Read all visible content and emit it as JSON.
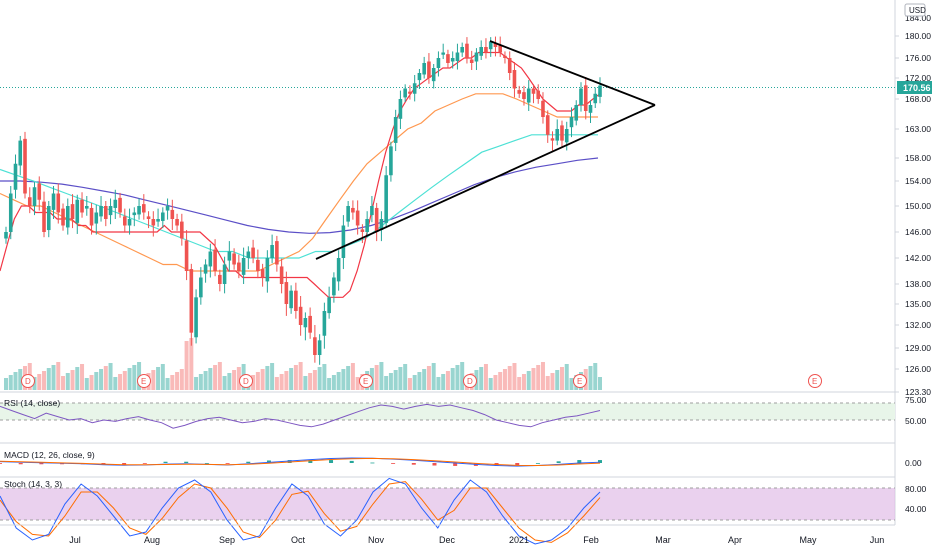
{
  "chart_data": {
    "type": "candlestick",
    "currency": "USD",
    "last_price": "170.56",
    "x_ticks": [
      "Jul",
      "Aug",
      "Sep",
      "Oct",
      "Nov",
      "Dec",
      "2021",
      "Feb",
      "Mar",
      "Apr",
      "May",
      "Jun"
    ],
    "price_ticks": [
      "180.00",
      "176.00",
      "172.00",
      "168.00",
      "163.00",
      "158.00",
      "154.00",
      "150.00",
      "146.00",
      "142.00",
      "138.00",
      "135.00",
      "132.00",
      "129.00",
      "126.00",
      "123.30"
    ],
    "price_top_tick": "184.00",
    "price_range": [
      123.3,
      184.0
    ],
    "closes": [
      146,
      152,
      157,
      161,
      152,
      150,
      153,
      151,
      146,
      150,
      152,
      149,
      147,
      150,
      148,
      151,
      149,
      150,
      147,
      149,
      150,
      148,
      150,
      151,
      149,
      147,
      148,
      149,
      150,
      149,
      148,
      147,
      148,
      149,
      150,
      148,
      147,
      145,
      140,
      131,
      136,
      139,
      141,
      143,
      140,
      138,
      141,
      143,
      141,
      140,
      142,
      143,
      142,
      140,
      139,
      142,
      144,
      141,
      138,
      135,
      137,
      134,
      132,
      133,
      131,
      128,
      130,
      134,
      136,
      139,
      142,
      147,
      150,
      149,
      147,
      146,
      148,
      150,
      146,
      148,
      155,
      160,
      165,
      168,
      170,
      169,
      171,
      173,
      175,
      172,
      174,
      176,
      177,
      175,
      176,
      177,
      178,
      176,
      175,
      177,
      178,
      177,
      179,
      178,
      177,
      176,
      173,
      170,
      169,
      168,
      170,
      169,
      168,
      165,
      162,
      161,
      163,
      161,
      163,
      165,
      167,
      170,
      166,
      167,
      169,
      170.56
    ],
    "ema_short": [
      140,
      144,
      148,
      150,
      150,
      149,
      149,
      149,
      148,
      148,
      148,
      147,
      147,
      146,
      146,
      146,
      146,
      146,
      146,
      146,
      146,
      146,
      146,
      147,
      146,
      146,
      146,
      146,
      146,
      145,
      144,
      142,
      140,
      140,
      139,
      139,
      139,
      139,
      139,
      139,
      139,
      139,
      139,
      139,
      138,
      137,
      136,
      136,
      136,
      137,
      140,
      144,
      149,
      154,
      159,
      163,
      166,
      168,
      170,
      171,
      172,
      173,
      174,
      174,
      175,
      176,
      176,
      177,
      177,
      177,
      177,
      176,
      175,
      174,
      172,
      170,
      168,
      167,
      166,
      166,
      166,
      167,
      167,
      168,
      169
    ],
    "ema_mid": [
      152,
      151,
      150,
      150,
      149,
      148,
      147,
      146,
      145,
      144,
      143,
      142,
      141,
      141,
      140,
      140,
      140,
      140,
      140,
      140,
      141,
      142,
      143,
      145,
      148,
      151,
      154,
      157,
      159,
      161,
      163,
      164,
      166,
      167,
      168,
      169,
      169,
      169,
      168,
      167,
      166,
      165,
      165,
      165,
      165
    ],
    "ema_long": [
      156,
      155,
      154,
      153,
      152,
      151,
      150,
      149,
      148,
      147,
      146,
      145,
      144,
      143,
      143,
      142,
      142,
      142,
      142,
      143,
      143,
      144,
      145,
      147,
      149,
      151,
      153,
      155,
      157,
      159,
      160,
      161,
      162,
      162,
      162,
      162,
      162
    ],
    "ema_slow": [
      154,
      154,
      153.8,
      153.5,
      153,
      152.4,
      151.8,
      151,
      150.2,
      149.4,
      148.6,
      147.8,
      147,
      146.4,
      146,
      145.8,
      145.9,
      146.3,
      147,
      148,
      149.2,
      150.6,
      152,
      153.4,
      154.6,
      155.6,
      156.4,
      157,
      157.6,
      158
    ],
    "earnings_markers": [
      "D",
      "E",
      "D",
      "E",
      "D",
      "E",
      "E"
    ],
    "rsi": {
      "label": "RSI (14, close)",
      "ticks": [
        "75.00",
        "50.00"
      ],
      "values": [
        70,
        64,
        58,
        52,
        60,
        55,
        50,
        52,
        46,
        50,
        48,
        52,
        55,
        50,
        46,
        38,
        42,
        48,
        52,
        54,
        50,
        46,
        48,
        52,
        50,
        46,
        42,
        40,
        44,
        50,
        56,
        62,
        68,
        72,
        70,
        66,
        70,
        73,
        70,
        72,
        68,
        64,
        58,
        50,
        46,
        42,
        40,
        46,
        50,
        54,
        56,
        60,
        64
      ]
    },
    "macd": {
      "label": "MACD (12, 26, close, 9)",
      "ticks": [
        "0.00"
      ],
      "values": [
        1,
        0.6,
        0.2,
        -0.2,
        -0.6,
        -1.2,
        -1.6,
        -1.4,
        -0.8,
        -0.6,
        -1,
        -1.4,
        -0.6,
        0.4,
        1.4,
        2.4,
        3.2,
        3.6,
        3.4,
        2.8,
        2,
        1,
        0,
        -1,
        -1.8,
        -2.2,
        -1.8,
        -1,
        0,
        0.6
      ],
      "signal": [
        1.2,
        0.9,
        0.5,
        0.1,
        -0.3,
        -0.8,
        -1.2,
        -1.3,
        -1.1,
        -0.9,
        -1,
        -1.2,
        -0.9,
        -0.2,
        0.7,
        1.6,
        2.5,
        3.1,
        3.3,
        3,
        2.4,
        1.6,
        0.7,
        -0.3,
        -1.1,
        -1.7,
        -1.8,
        -1.4,
        -0.7,
        -0.1
      ],
      "histogram": [
        -0.2,
        -0.3,
        -0.3,
        -0.3,
        -0.3,
        -0.4,
        -0.4,
        -0.1,
        0.3,
        0.3,
        0,
        -0.2,
        0.3,
        0.6,
        0.7,
        0.8,
        0.7,
        0.5,
        0.1,
        -0.2,
        -0.4,
        -0.6,
        -0.7,
        -0.7,
        -0.7,
        -0.5,
        0,
        0.4,
        0.7,
        0.7
      ]
    },
    "stoch": {
      "label": "Stoch (14, 3, 3)",
      "ticks": [
        "80.00",
        "40.00"
      ],
      "k": [
        70,
        30,
        15,
        22,
        60,
        85,
        70,
        45,
        20,
        25,
        55,
        80,
        90,
        75,
        40,
        15,
        20,
        55,
        85,
        70,
        35,
        20,
        40,
        75,
        92,
        85,
        55,
        30,
        65,
        90,
        75,
        45,
        20,
        10,
        15,
        30,
        55,
        75
      ],
      "d": [
        65,
        38,
        22,
        20,
        45,
        75,
        75,
        55,
        30,
        22,
        42,
        68,
        85,
        80,
        55,
        25,
        18,
        40,
        72,
        76,
        48,
        26,
        32,
        60,
        85,
        88,
        66,
        40,
        52,
        80,
        80,
        55,
        30,
        15,
        12,
        24,
        45,
        68
      ]
    },
    "colors": {
      "up": "#26a69a",
      "down": "#ef5350",
      "ema_short": "#f23645",
      "ema_mid": "#ff9850",
      "ema_long": "#4de1d5",
      "ema_slow": "#5b4fc7",
      "rsi_line": "#7e57c2",
      "rsi_band": "#e8f5e9",
      "stoch_band": "#e1bee7",
      "stoch_k": "#2962ff",
      "stoch_d": "#ff6d00",
      "macd_line": "#2962ff",
      "signal_line": "#ff6d00",
      "price_badge": "#26a69a",
      "trendline": "#000000"
    }
  }
}
